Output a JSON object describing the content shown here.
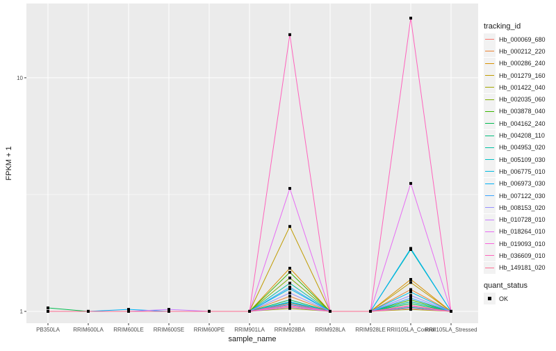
{
  "chart_data": {
    "type": "line",
    "xlabel": "sample_name",
    "ylabel": "FPKM + 1",
    "y_scale": "log10",
    "ylim": [
      0.89,
      20.8
    ],
    "y_ticks": [
      1,
      10
    ],
    "y_tick_labels": [
      "1",
      "10"
    ],
    "grid": true,
    "legend_placement": "right",
    "categories": [
      "PB350LA",
      "RRIM600LA",
      "RRIM600LE",
      "RRIM600SE",
      "RRIM600PE",
      "RRIM901LA",
      "RRIM928BA",
      "RRIM928LA",
      "RRIM928LE",
      "RRII105LA_Control",
      "RRII105LA_Stressed"
    ],
    "legend_title": "tracking_id",
    "series": [
      {
        "name": "Hb_000069_680",
        "color": "#F8766D",
        "values": [
          1,
          1,
          1,
          1,
          1,
          1,
          1.05,
          1,
          1,
          1.06,
          1
        ]
      },
      {
        "name": "Hb_000212_220",
        "color": "#EA8331",
        "values": [
          1,
          1,
          1,
          1,
          1,
          1,
          1.16,
          1,
          1,
          1.24,
          1
        ]
      },
      {
        "name": "Hb_000286_240",
        "color": "#D89000",
        "values": [
          1,
          1,
          1,
          1,
          1,
          1,
          1.53,
          1,
          1,
          1.37,
          1
        ]
      },
      {
        "name": "Hb_001279_160",
        "color": "#C09B00",
        "values": [
          1,
          1,
          1,
          1,
          1,
          1,
          2.31,
          1,
          1,
          1.33,
          1
        ]
      },
      {
        "name": "Hb_001422_040",
        "color": "#A3A500",
        "values": [
          1,
          1,
          1,
          1,
          1,
          1,
          1.03,
          1,
          1,
          1.02,
          1
        ]
      },
      {
        "name": "Hb_002035_060",
        "color": "#7CAE00",
        "values": [
          1,
          1,
          1,
          1,
          1,
          1,
          1.39,
          1,
          1,
          1.1,
          1
        ]
      },
      {
        "name": "Hb_003878_040",
        "color": "#39B600",
        "values": [
          1,
          1,
          1,
          1,
          1,
          1,
          1.47,
          1,
          1,
          1.12,
          1
        ]
      },
      {
        "name": "Hb_004162_240",
        "color": "#00BB4E",
        "values": [
          1.035,
          1,
          1,
          1,
          1,
          1,
          1.12,
          1,
          1,
          1.08,
          1
        ]
      },
      {
        "name": "Hb_004208_110",
        "color": "#00BF7D",
        "values": [
          1,
          1,
          1,
          1,
          1,
          1,
          1.09,
          1,
          1,
          1.04,
          1
        ]
      },
      {
        "name": "Hb_004953_020",
        "color": "#00C1A3",
        "values": [
          1,
          1,
          1,
          1,
          1,
          1,
          1.32,
          1,
          1,
          1.84,
          1
        ]
      },
      {
        "name": "Hb_005109_030",
        "color": "#00BFC4",
        "values": [
          1,
          1,
          1,
          1,
          1,
          1,
          1.07,
          1,
          1,
          1.1,
          1
        ]
      },
      {
        "name": "Hb_006775_010",
        "color": "#00BAE0",
        "values": [
          1,
          1,
          1,
          1,
          1,
          1,
          1.25,
          1,
          1,
          1.21,
          1
        ]
      },
      {
        "name": "Hb_006973_030",
        "color": "#00B0F6",
        "values": [
          1,
          1,
          1.02,
          1,
          1,
          1,
          1.1,
          1,
          1,
          1.86,
          1
        ]
      },
      {
        "name": "Hb_007122_030",
        "color": "#35A2FF",
        "values": [
          1,
          1,
          1,
          1,
          1,
          1,
          1.27,
          1,
          1,
          1.14,
          1
        ]
      },
      {
        "name": "Hb_008153_020",
        "color": "#9590FF",
        "values": [
          1,
          1,
          1,
          1,
          1,
          1,
          1.2,
          1,
          1,
          1.17,
          1
        ]
      },
      {
        "name": "Hb_010728_010",
        "color": "#C77CFF",
        "values": [
          1,
          1,
          1,
          1.02,
          1,
          1,
          1.04,
          1,
          1,
          1.05,
          1
        ]
      },
      {
        "name": "Hb_018264_010",
        "color": "#E76BF3",
        "values": [
          1,
          1,
          1,
          1,
          1,
          1,
          3.36,
          1,
          1,
          3.53,
          1
        ]
      },
      {
        "name": "Hb_019093_010",
        "color": "#FA62DB",
        "values": [
          1,
          1,
          1,
          1,
          1,
          1,
          1.06,
          1,
          1,
          1.03,
          1
        ]
      },
      {
        "name": "Hb_036609_010",
        "color": "#FF62BC",
        "values": [
          1,
          1,
          1,
          1,
          1,
          1,
          15.3,
          1,
          1,
          18.0,
          1
        ]
      },
      {
        "name": "Hb_149181_020",
        "color": "#FF6C91",
        "values": [
          1,
          1,
          1,
          1,
          1,
          1,
          1.08,
          1,
          1,
          1.06,
          1
        ]
      }
    ],
    "point_legend_title": "quant_status",
    "point_legend_items": [
      "OK"
    ]
  }
}
